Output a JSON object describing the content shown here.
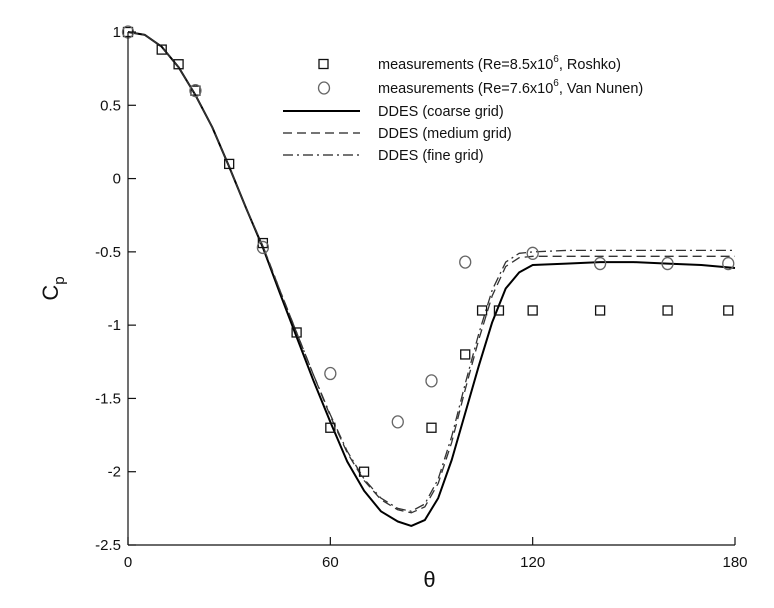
{
  "chart_data": {
    "type": "line",
    "title": "",
    "xlabel": "θ",
    "ylabel": "Cp",
    "ylabel_main": "C",
    "ylabel_sub": "p",
    "xlim": [
      0,
      180
    ],
    "ylim": [
      -2.5,
      1
    ],
    "x_ticks": [
      0,
      60,
      120,
      180
    ],
    "y_ticks": [
      1,
      0.5,
      0,
      -0.5,
      -1,
      -1.5,
      -2,
      -2.5
    ],
    "grid": false,
    "legend_placement": "top-right",
    "series": [
      {
        "name": "measurements (Re=8.5x10^6, Roshko)",
        "legend_main": "measurements (Re=8.5x10",
        "legend_sup": "6",
        "legend_tail": ", Roshko)",
        "kind": "scatter",
        "marker": "square",
        "x": [
          0,
          10,
          15,
          20,
          30,
          40,
          50,
          60,
          70,
          90,
          100,
          105,
          110,
          120,
          140,
          160,
          178
        ],
        "y": [
          1.0,
          0.88,
          0.78,
          0.6,
          0.1,
          -0.44,
          -1.05,
          -1.7,
          -2.0,
          -1.7,
          -1.2,
          -0.9,
          -0.9,
          -0.9,
          -0.9,
          -0.9,
          -0.9
        ]
      },
      {
        "name": "measurements (Re=7.6x10^6, Van Nunen)",
        "legend_main": "measurements (Re=7.6x10",
        "legend_sup": "6",
        "legend_tail": ", Van Nunen)",
        "kind": "scatter",
        "marker": "circle",
        "x": [
          0,
          20,
          40,
          60,
          80,
          90,
          100,
          120,
          140,
          160,
          178
        ],
        "y": [
          1.0,
          0.6,
          -0.47,
          -1.33,
          -1.66,
          -1.38,
          -0.57,
          -0.51,
          -0.58,
          -0.58,
          -0.58
        ]
      },
      {
        "name": "DDES (coarse grid)",
        "kind": "line",
        "dash": "solid",
        "x": [
          0,
          5,
          10,
          15,
          20,
          25,
          30,
          35,
          40,
          45,
          50,
          55,
          60,
          65,
          70,
          75,
          80,
          84,
          88,
          92,
          96,
          100,
          104,
          108,
          112,
          116,
          120,
          130,
          140,
          150,
          160,
          170,
          180
        ],
        "y": [
          1.0,
          0.98,
          0.9,
          0.76,
          0.57,
          0.35,
          0.08,
          -0.2,
          -0.47,
          -0.78,
          -1.08,
          -1.38,
          -1.66,
          -1.93,
          -2.13,
          -2.27,
          -2.34,
          -2.37,
          -2.33,
          -2.18,
          -1.92,
          -1.6,
          -1.28,
          -0.98,
          -0.75,
          -0.64,
          -0.59,
          -0.58,
          -0.57,
          -0.57,
          -0.58,
          -0.59,
          -0.61
        ]
      },
      {
        "name": "DDES (medium grid)",
        "kind": "line",
        "dash": "dashed",
        "x": [
          0,
          5,
          10,
          15,
          20,
          25,
          30,
          35,
          40,
          45,
          50,
          55,
          60,
          65,
          70,
          75,
          80,
          84,
          88,
          92,
          96,
          100,
          104,
          108,
          112,
          116,
          120,
          130,
          140,
          150,
          160,
          170,
          180
        ],
        "y": [
          1.0,
          0.98,
          0.9,
          0.76,
          0.57,
          0.35,
          0.08,
          -0.2,
          -0.46,
          -0.76,
          -1.05,
          -1.34,
          -1.62,
          -1.87,
          -2.06,
          -2.19,
          -2.26,
          -2.28,
          -2.24,
          -2.08,
          -1.8,
          -1.44,
          -1.1,
          -0.8,
          -0.6,
          -0.54,
          -0.53,
          -0.53,
          -0.53,
          -0.53,
          -0.53,
          -0.53,
          -0.53
        ]
      },
      {
        "name": "DDES (fine grid)",
        "kind": "line",
        "dash": "dashdot",
        "x": [
          0,
          5,
          10,
          15,
          20,
          25,
          30,
          35,
          40,
          45,
          50,
          55,
          60,
          65,
          70,
          75,
          80,
          84,
          88,
          92,
          96,
          100,
          104,
          108,
          112,
          116,
          120,
          130,
          140,
          150,
          160,
          170,
          180
        ],
        "y": [
          1.0,
          0.98,
          0.9,
          0.76,
          0.57,
          0.35,
          0.08,
          -0.2,
          -0.46,
          -0.76,
          -1.05,
          -1.34,
          -1.61,
          -1.86,
          -2.05,
          -2.18,
          -2.25,
          -2.27,
          -2.22,
          -2.05,
          -1.76,
          -1.4,
          -1.06,
          -0.76,
          -0.57,
          -0.51,
          -0.5,
          -0.49,
          -0.49,
          -0.49,
          -0.49,
          -0.49,
          -0.49
        ]
      }
    ]
  }
}
